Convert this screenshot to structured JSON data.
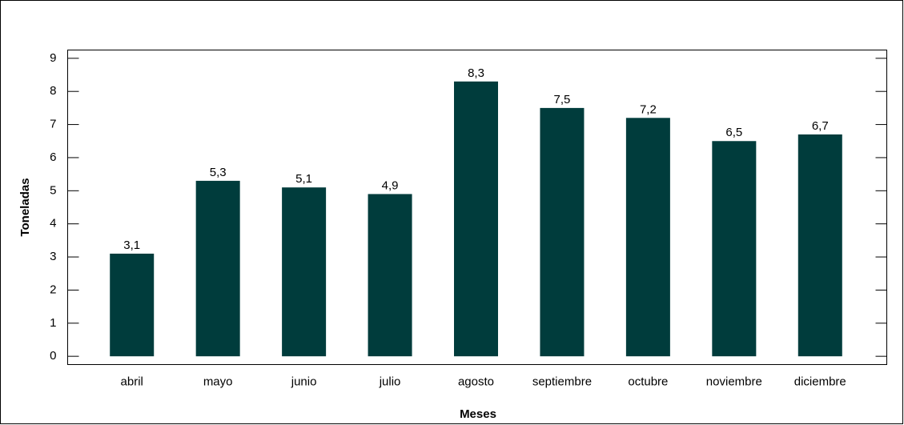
{
  "chart_data": {
    "type": "bar",
    "categories": [
      "abril",
      "mayo",
      "junio",
      "julio",
      "agosto",
      "septiembre",
      "octubre",
      "noviembre",
      "diciembre"
    ],
    "values": [
      3.1,
      5.3,
      5.1,
      4.9,
      8.3,
      7.5,
      7.2,
      6.5,
      6.7
    ],
    "value_labels": [
      "3,1",
      "5,3",
      "5,1",
      "4,9",
      "8,3",
      "7,5",
      "7,2",
      "6,5",
      "6,7"
    ],
    "color": "#003c3c",
    "xlabel": "Meses",
    "ylabel": "Toneladas",
    "ylim": [
      -0.25,
      9.25
    ],
    "yticks": [
      0,
      1,
      2,
      3,
      4,
      5,
      6,
      7,
      8,
      9
    ],
    "grid": false
  }
}
